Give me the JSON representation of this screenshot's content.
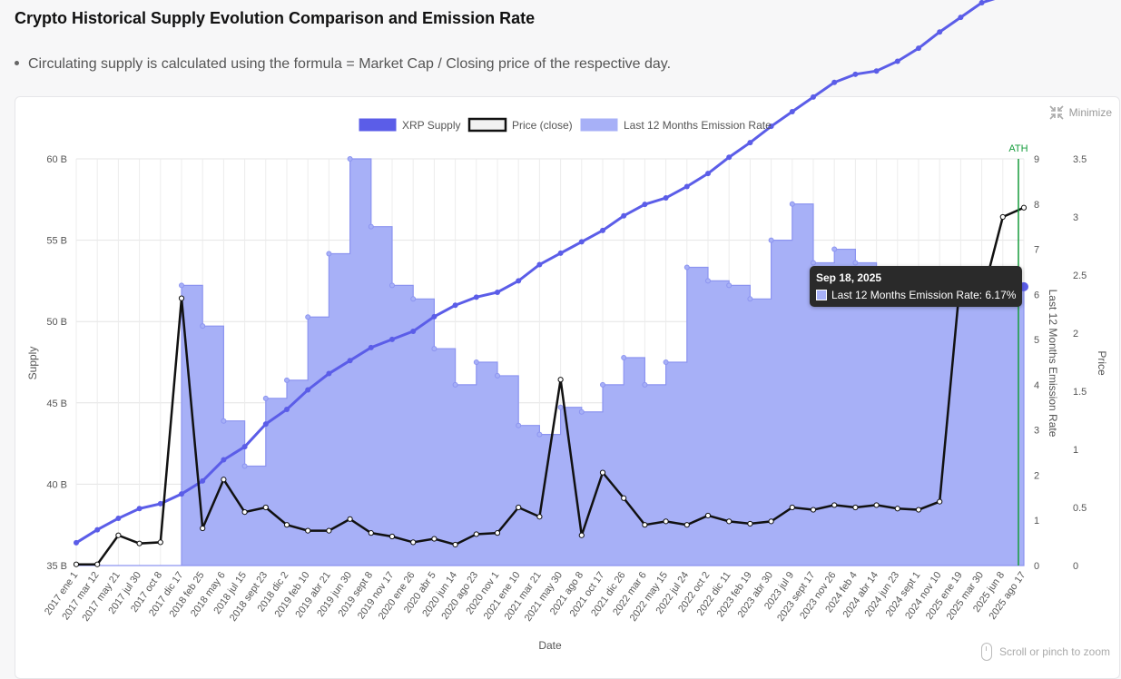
{
  "header": {
    "title": "Crypto Historical Supply Evolution Comparison and Emission Rate",
    "note": "Circulating supply is calculated using the formula = Market Cap / Closing price of the respective day."
  },
  "controls": {
    "minimize_label": "Minimize",
    "scroll_hint": "Scroll or pinch to zoom"
  },
  "tooltip": {
    "date": "Sep 18, 2025",
    "text": "Last 12 Months Emission Rate: 6.17%"
  },
  "colors": {
    "supply": "#5b5de8",
    "emission_fill": "#a7b0f7",
    "emission_line": "#8c94f0",
    "price": "#111111",
    "ath": "#169c3c"
  },
  "chart_data": {
    "type": "line",
    "xlabel": "Date",
    "x": [
      "2017 ene 1",
      "2017 mar 12",
      "2017 may 21",
      "2017 jul 30",
      "2017 oct 8",
      "2017 dic 17",
      "2018 feb 25",
      "2018 may 6",
      "2018 jul 15",
      "2018 sept 23",
      "2018 dic 2",
      "2019 feb 10",
      "2019 abr 21",
      "2019 jun 30",
      "2019 sept 8",
      "2019 nov 17",
      "2020 ene 26",
      "2020 abr 5",
      "2020 jun 14",
      "2020 ago 23",
      "2020 nov 1",
      "2021 ene 10",
      "2021 mar 21",
      "2021 may 30",
      "2021 ago 8",
      "2021 oct 17",
      "2021 dic 26",
      "2022 mar 6",
      "2022 may 15",
      "2022 jul 24",
      "2022 oct 2",
      "2022 dic 11",
      "2023 feb 19",
      "2023 abr 30",
      "2023 jul 9",
      "2023 sept 17",
      "2023 nov 26",
      "2024 feb 4",
      "2024 abr 14",
      "2024 jun 23",
      "2024 sept 1",
      "2024 nov 10",
      "2025 ene 19",
      "2025 mar 30",
      "2025 jun 8",
      "2025 ago 17"
    ],
    "axes": {
      "supply": {
        "label": "Supply",
        "ticks": [
          "35 B",
          "40 B",
          "45 B",
          "50 B",
          "55 B",
          "60 B"
        ],
        "range": [
          35,
          60
        ]
      },
      "emission": {
        "label": "Last 12 Months Emission Rate",
        "ticks": [
          "0",
          "1",
          "2",
          "3",
          "4",
          "5",
          "6",
          "7",
          "8",
          "9"
        ],
        "range": [
          0,
          9
        ]
      },
      "price": {
        "label": "Price",
        "ticks": [
          "0",
          "0.5",
          "1",
          "1.5",
          "2",
          "2.5",
          "3",
          "3.5"
        ],
        "range": [
          0,
          3.5
        ]
      }
    },
    "annotation": "ATH",
    "series": [
      {
        "name": "XRP Supply",
        "axis": "supply",
        "values": [
          36.4,
          37.2,
          37.9,
          38.5,
          38.8,
          39.4,
          40.2,
          41.5,
          42.3,
          43.7,
          44.6,
          45.8,
          46.8,
          47.6,
          48.4,
          48.9,
          49.4,
          50.3,
          51.0,
          51.5,
          51.8,
          52.5,
          53.5,
          54.2,
          54.9,
          55.6,
          56.5,
          57.2,
          57.6,
          58.3,
          59.1,
          60.1,
          61.0,
          62.0,
          62.9,
          63.8,
          64.7,
          65.2,
          65.4,
          66.0,
          66.8,
          67.8,
          68.7,
          69.6,
          70.0,
          70.8
        ]
      },
      {
        "name": "Price (close)",
        "axis": "price",
        "values": [
          0.01,
          0.01,
          0.26,
          0.19,
          0.2,
          2.3,
          0.32,
          0.74,
          0.46,
          0.5,
          0.35,
          0.3,
          0.3,
          0.4,
          0.28,
          0.25,
          0.2,
          0.23,
          0.18,
          0.27,
          0.28,
          0.5,
          0.42,
          1.6,
          0.26,
          0.8,
          0.58,
          0.35,
          0.38,
          0.35,
          0.43,
          0.38,
          0.36,
          0.38,
          0.5,
          0.48,
          0.52,
          0.5,
          0.52,
          0.49,
          0.48,
          0.55,
          2.5,
          2.3,
          3.0,
          3.08
        ]
      },
      {
        "name": "Last 12 Months Emission Rate",
        "axis": "emission",
        "values": [
          0,
          0,
          0,
          0,
          0,
          6.2,
          5.3,
          3.2,
          2.2,
          3.7,
          4.1,
          5.5,
          6.9,
          9.0,
          7.5,
          6.2,
          5.9,
          4.8,
          4.0,
          4.5,
          4.2,
          3.1,
          2.9,
          3.5,
          3.4,
          4.0,
          4.6,
          4.0,
          4.5,
          6.6,
          6.3,
          6.2,
          5.9,
          7.2,
          8.0,
          6.7,
          7.0,
          6.7,
          6.4,
          6.3,
          6.3,
          6.3,
          6.2,
          6.2,
          6.2,
          6.17
        ]
      }
    ]
  }
}
